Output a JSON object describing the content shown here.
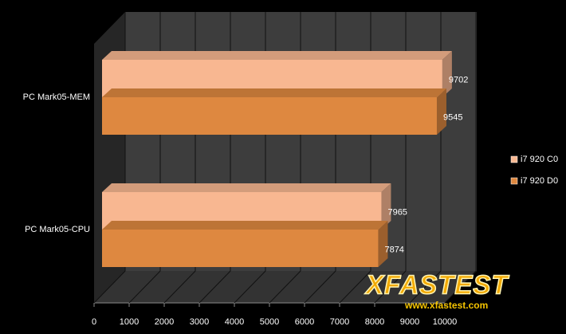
{
  "chart_data": {
    "type": "bar3d",
    "categories": [
      "PC Mark05-MEM",
      "PC Mark05-CPU"
    ],
    "series": [
      {
        "name": "i7 920 C0",
        "color": "#f8b791",
        "values": [
          9702,
          7965
        ]
      },
      {
        "name": "i7 920 D0",
        "color": "#de8840",
        "values": [
          9545,
          7874
        ]
      }
    ],
    "xlim": [
      0,
      10000
    ],
    "xticks": [
      0,
      1000,
      2000,
      3000,
      4000,
      5000,
      6000,
      7000,
      8000,
      9000,
      10000
    ],
    "grid": true,
    "legend": "right",
    "annotations": [
      "XFASTEST",
      "www.xfastest.com"
    ]
  }
}
